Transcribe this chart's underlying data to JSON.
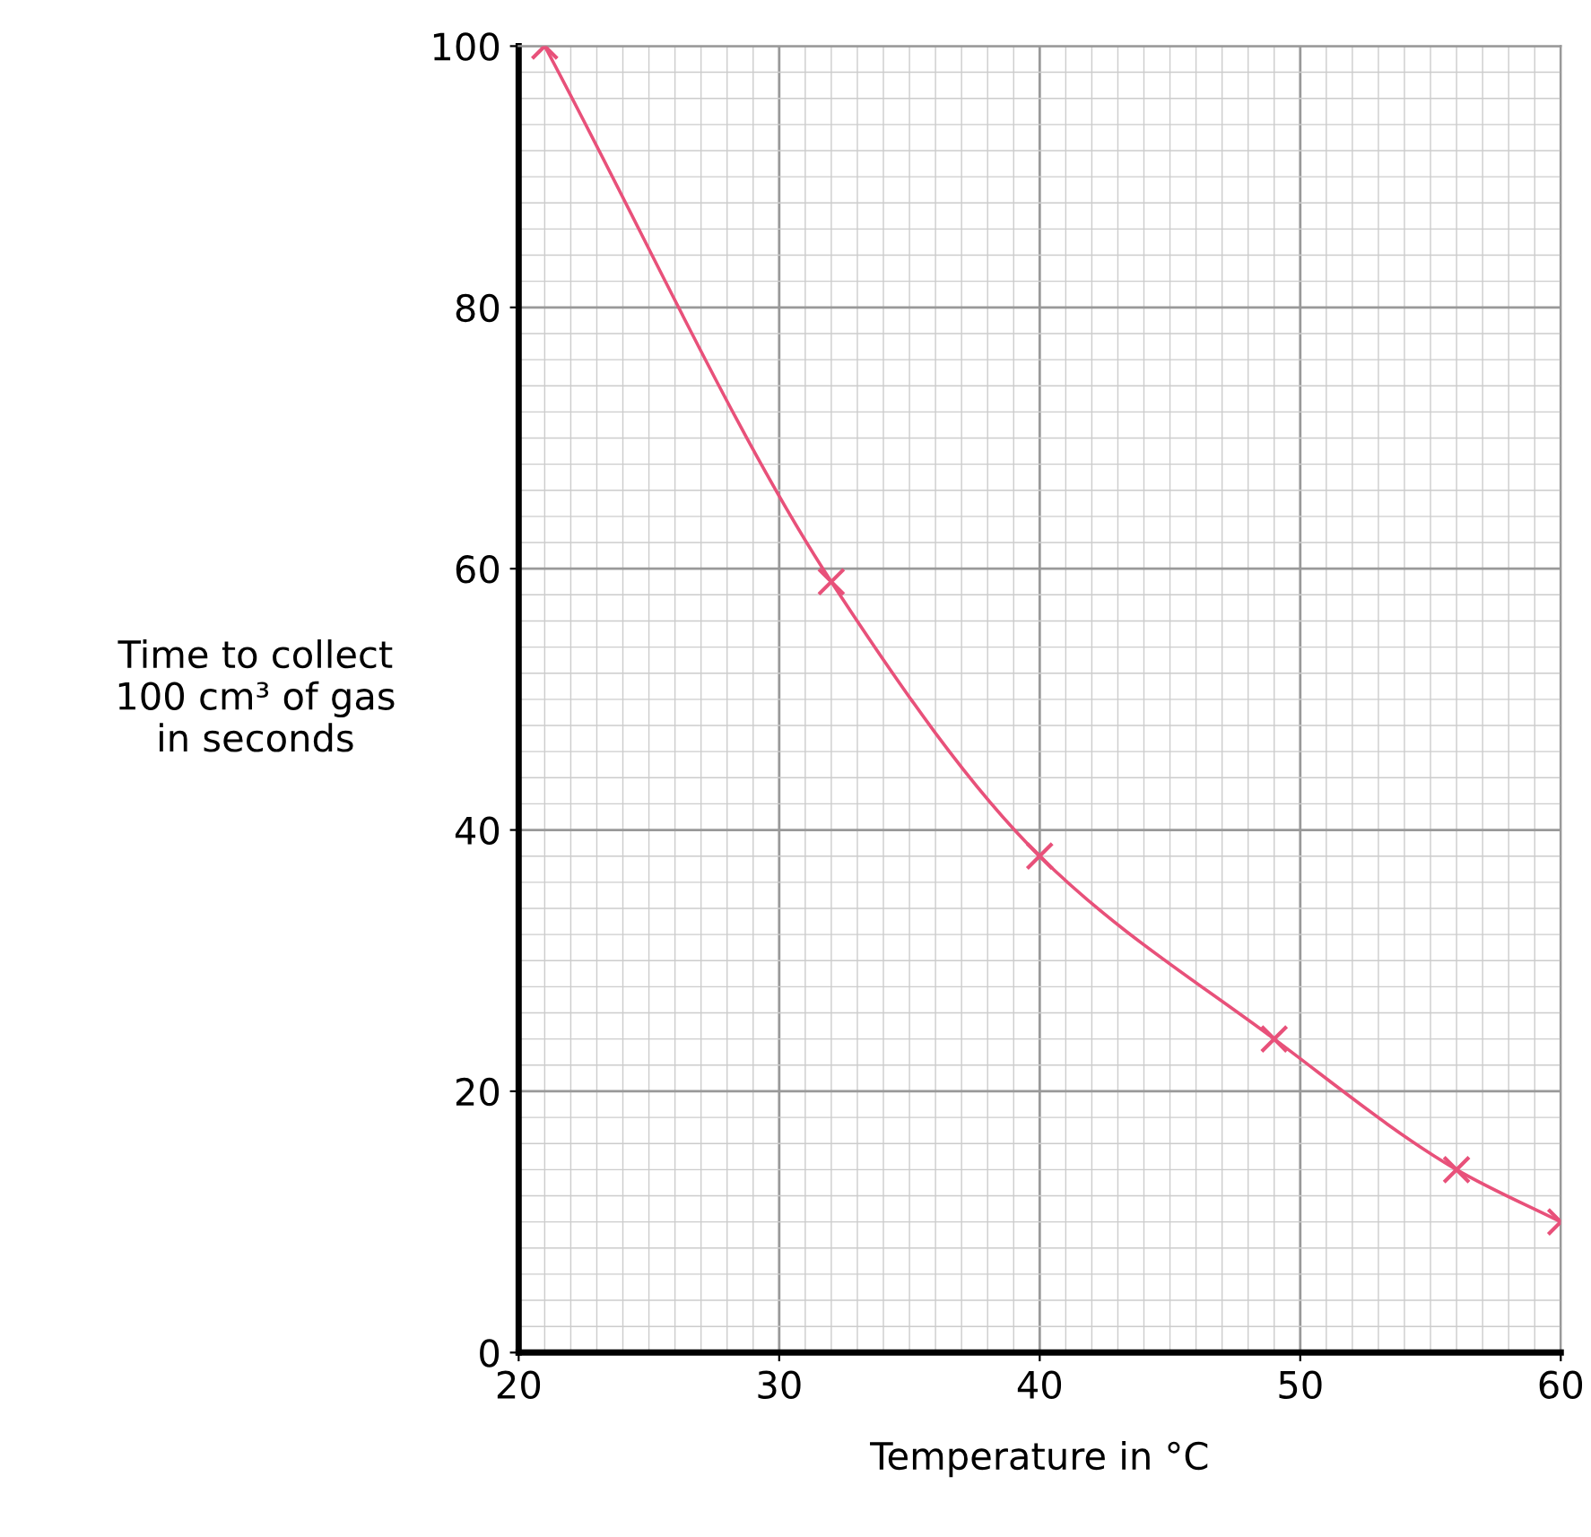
{
  "chart_data": {
    "type": "line",
    "xlabel": "Temperature in °C",
    "ylabel": "Time to collect\n100 cm³ of gas\nin seconds",
    "x": [
      21,
      32,
      40,
      49,
      56,
      60
    ],
    "series": [
      {
        "color": "#e8517a",
        "values": [
          100,
          59,
          38,
          24,
          14,
          10
        ]
      }
    ],
    "xlim": [
      20,
      60
    ],
    "xticks": [
      20,
      30,
      40,
      50,
      60
    ],
    "ylim": [
      0,
      100
    ],
    "yticks": [
      0,
      20,
      40,
      60,
      80,
      100
    ],
    "grid": true,
    "marker": "cross",
    "line_style": "solid"
  }
}
